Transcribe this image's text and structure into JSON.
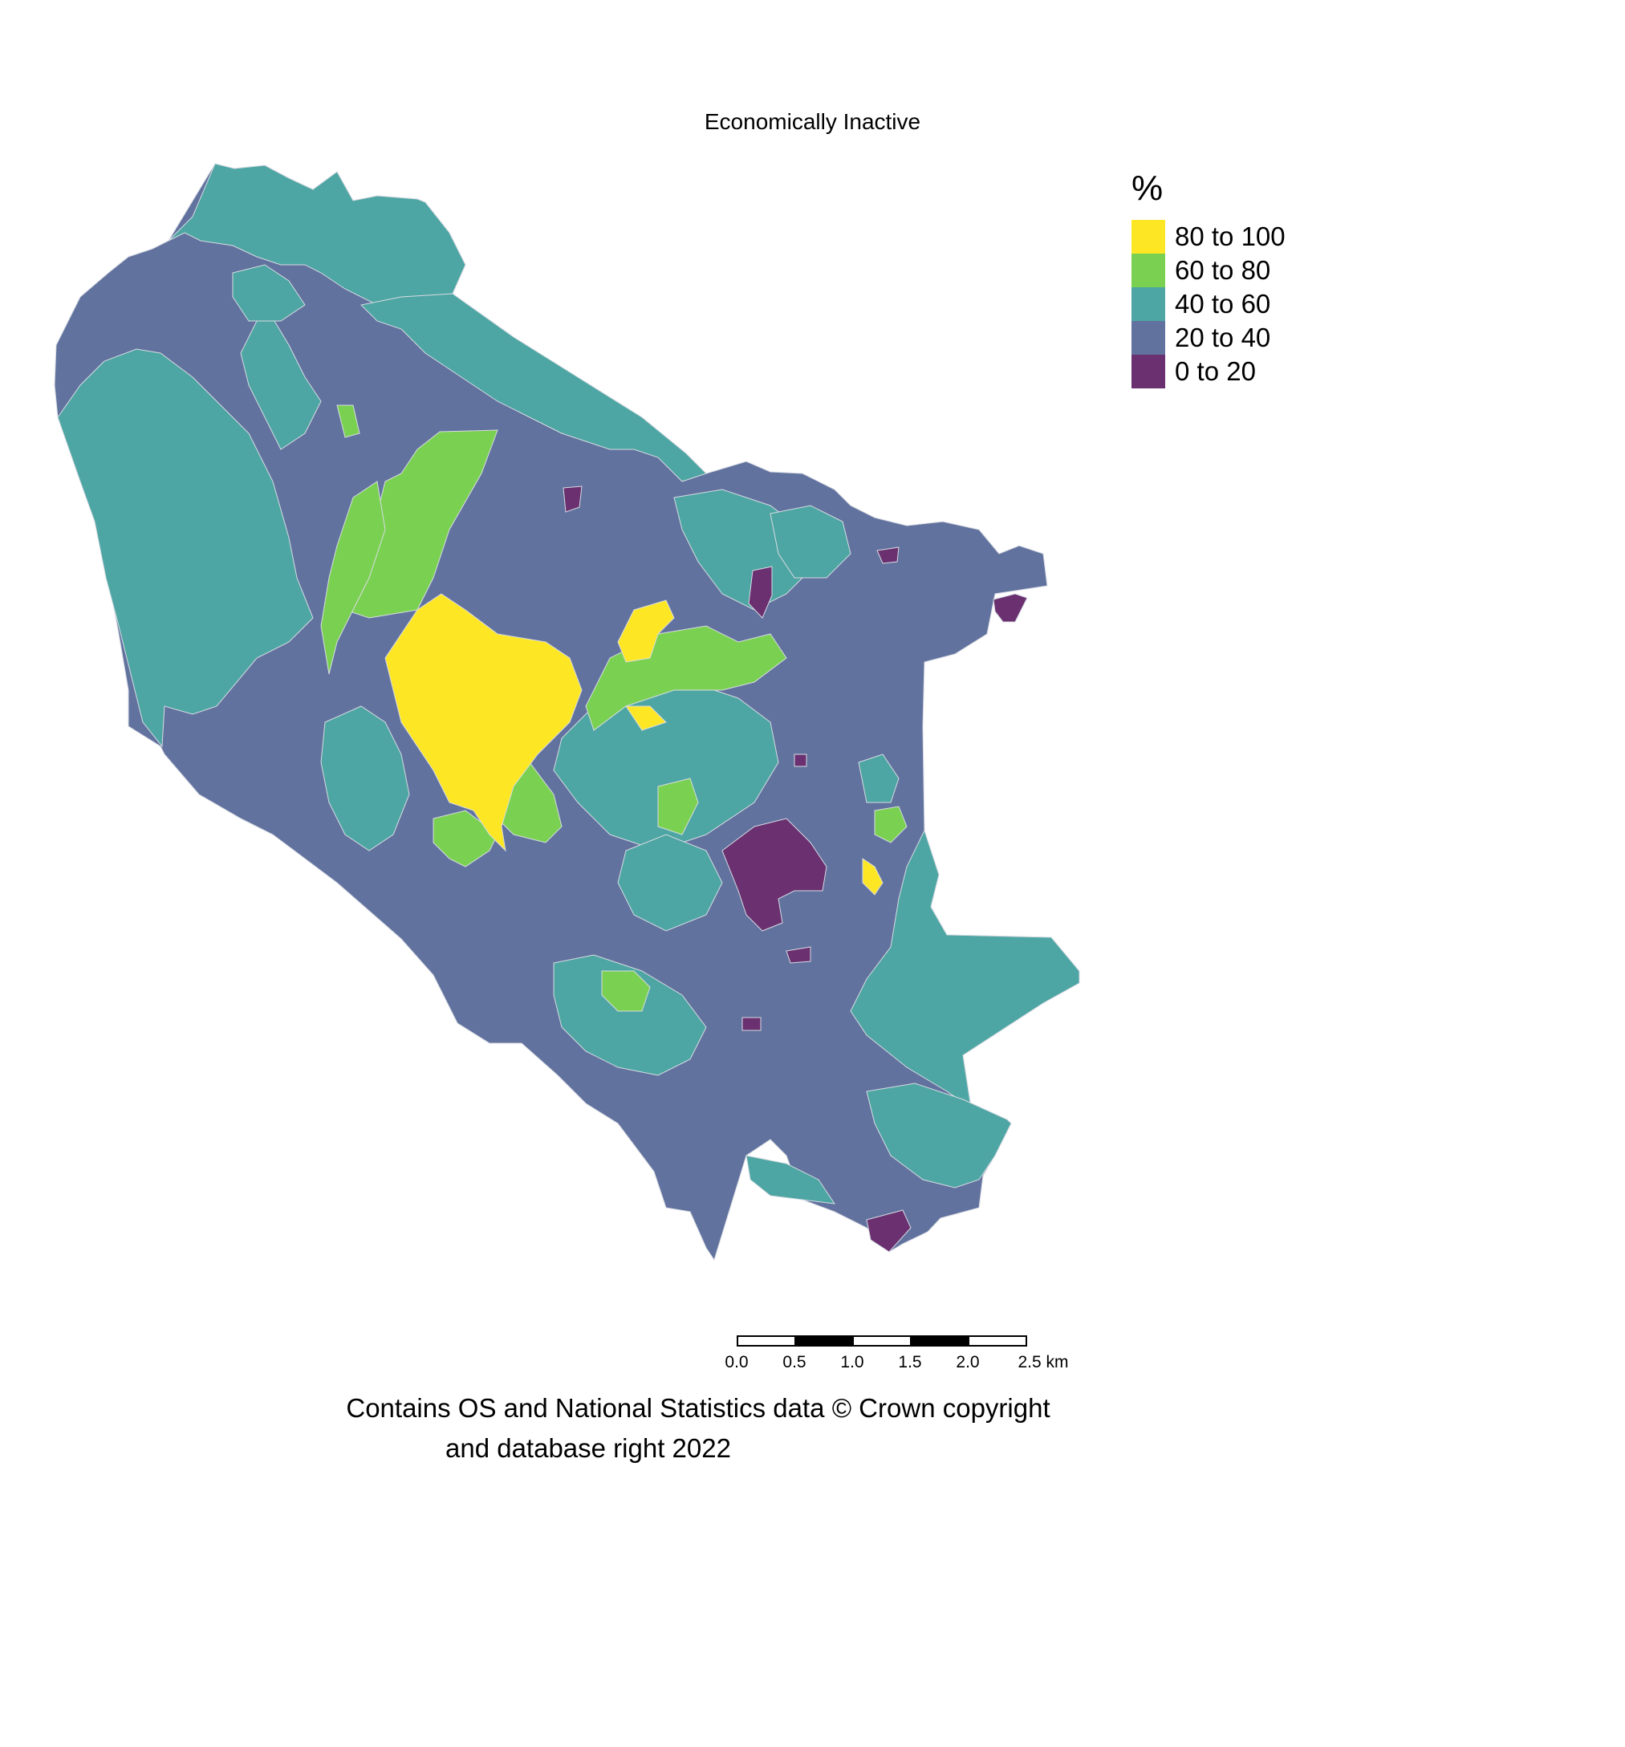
{
  "title": "Economically Inactive",
  "legend": {
    "title": "%",
    "items": [
      {
        "label": "80 to 100",
        "color": "#fde725"
      },
      {
        "label": "60 to 80",
        "color": "#7ad151"
      },
      {
        "label": "40 to 60",
        "color": "#4da6a3"
      },
      {
        "label": "20 to 40",
        "color": "#61729e"
      },
      {
        "label": "0 to 20",
        "color": "#6a3070"
      }
    ]
  },
  "scalebar": {
    "labels": [
      "0.0",
      "0.5",
      "1.0",
      "1.5",
      "2.0",
      "2.5 km"
    ]
  },
  "credit": {
    "line1": "Contains OS and National Statistics data © Crown copyright",
    "line2": "and database right 2022"
  },
  "colors": {
    "boundary": "#d8dbe3"
  }
}
